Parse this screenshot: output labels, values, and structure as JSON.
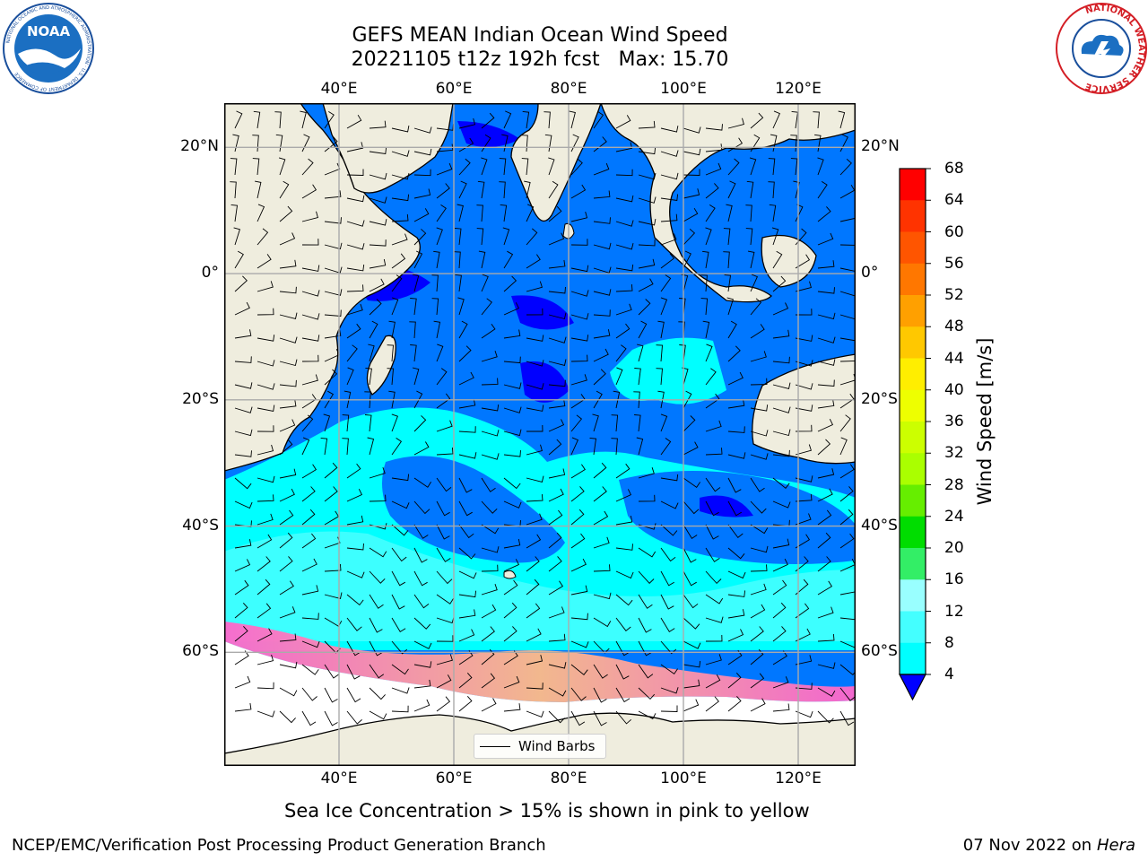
{
  "title": {
    "line1": "GEFS MEAN Indian Ocean Wind Speed",
    "line2": "20221105 t12z 192h fcst   Max: 15.70"
  },
  "logos": {
    "noaa": {
      "text": "NOAA",
      "ring_text": "NATIONAL OCEANIC AND ATMOSPHERIC ADMINISTRATION · U.S. DEPARTMENT OF COMMERCE"
    },
    "nws": {
      "ring_text": "NATIONAL WEATHER SERVICE"
    }
  },
  "map": {
    "lon_ticks": [
      "40°E",
      "60°E",
      "80°E",
      "100°E",
      "120°E"
    ],
    "lat_ticks": [
      "20°N",
      "0°",
      "20°S",
      "40°S",
      "60°S"
    ],
    "lon_range": [
      20,
      130
    ],
    "lat_range": [
      -78,
      27
    ],
    "lat_tick_values": [
      20,
      0,
      -20,
      -40,
      -60
    ],
    "lon_tick_values": [
      40,
      60,
      80,
      100,
      120
    ],
    "colors": {
      "land": "#efedde",
      "sea_ice_low": "#ff66cc",
      "sea_ice_high": "#ffcc66",
      "gridline": "#aaaaaa"
    },
    "legend_label": "Wind Barbs"
  },
  "colorbar": {
    "title": "Wind Speed [m/s]",
    "levels": [
      "68",
      "64",
      "60",
      "56",
      "52",
      "48",
      "44",
      "40",
      "36",
      "32",
      "28",
      "24",
      "20",
      "16",
      "12",
      "8",
      "4"
    ],
    "colors": [
      "#ff0000",
      "#ff3300",
      "#ff5500",
      "#ff7700",
      "#ffa000",
      "#ffc800",
      "#ffee00",
      "#eeff00",
      "#ccff00",
      "#aaff00",
      "#66ee00",
      "#00dd00",
      "#33ee66",
      "#99ffff",
      "#44ffff",
      "#00ffff",
      "#0077ff"
    ],
    "extend_color": "#0000ff"
  },
  "caption": "Sea Ice Concentration > 15% is shown in pink to yellow",
  "footer": {
    "left": "NCEP/EMC/Verification Post Processing Product Generation Branch",
    "right_date": "07 Nov 2022 on",
    "right_host": "Hera"
  }
}
